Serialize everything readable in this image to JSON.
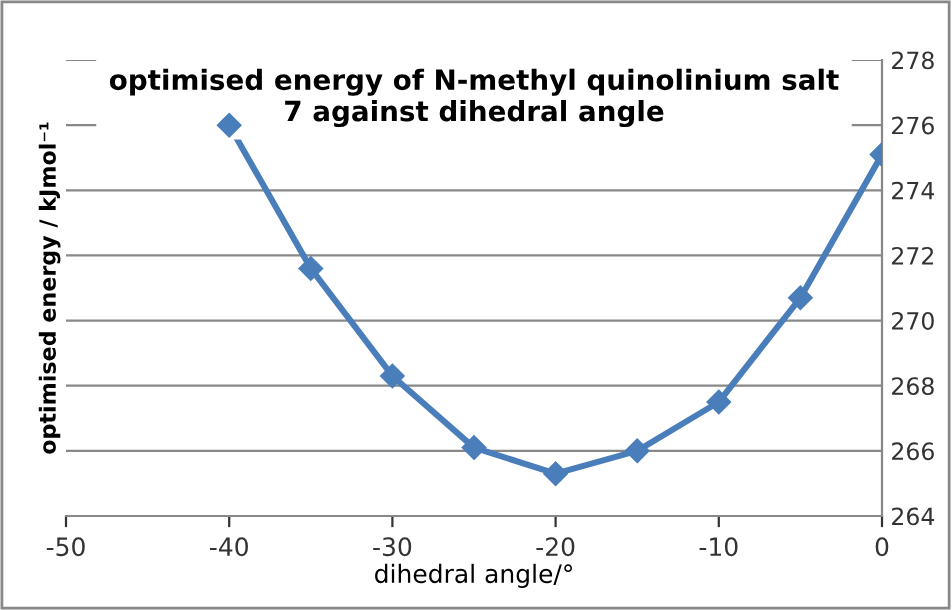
{
  "chart_data": {
    "type": "line",
    "title": "optimised energy of N-methyl quinolinium salt\n7 against dihedral angle",
    "xlabel": "dihedral angle/°",
    "ylabel": "optimised energy / kJmol⁻¹",
    "x": [
      -40,
      -35,
      -30,
      -25,
      -20,
      -15,
      -10,
      -5,
      0
    ],
    "series": [
      {
        "color": "#4a7ebb",
        "values": [
          276.0,
          271.6,
          268.3,
          266.1,
          265.3,
          266.0,
          267.5,
          270.7,
          275.1
        ]
      }
    ],
    "xlim": [
      -50,
      0
    ],
    "xticks": [
      -50,
      -40,
      -30,
      -20,
      -10,
      0
    ],
    "ylim": [
      264,
      278
    ],
    "yticks": [
      264,
      266,
      268,
      270,
      272,
      274,
      276,
      278
    ],
    "grid": "y",
    "marker": "diamond",
    "line_style": "solid",
    "legend": false
  }
}
